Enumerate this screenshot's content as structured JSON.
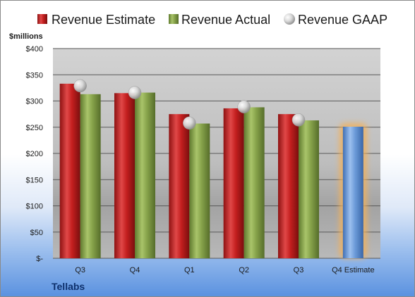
{
  "chart_data": {
    "type": "bar",
    "ylabel": "$millions",
    "company": "Tellabs",
    "ylim": [
      0,
      400
    ],
    "y_ticks": [
      {
        "value": 0,
        "label": "$-"
      },
      {
        "value": 50,
        "label": "$50"
      },
      {
        "value": 100,
        "label": "$100"
      },
      {
        "value": 150,
        "label": "$150"
      },
      {
        "value": 200,
        "label": "$200"
      },
      {
        "value": 250,
        "label": "$250"
      },
      {
        "value": 300,
        "label": "$300"
      },
      {
        "value": 350,
        "label": "$350"
      },
      {
        "value": 400,
        "label": "$400"
      }
    ],
    "categories": [
      "Q3",
      "Q4",
      "Q1",
      "Q2",
      "Q3",
      "Q4 Estimate"
    ],
    "series": [
      {
        "name": "Revenue Estimate",
        "kind": "bar",
        "color": "#cc2a2a",
        "values": [
          333,
          315,
          275,
          286,
          275,
          null
        ]
      },
      {
        "name": "Revenue Actual",
        "kind": "bar",
        "color": "#8aa84f",
        "values": [
          313,
          316,
          257,
          288,
          263,
          null
        ]
      },
      {
        "name": "Revenue GAAP",
        "kind": "marker",
        "color": "#c8c8c8",
        "values": [
          329,
          316,
          258,
          289,
          264,
          null
        ]
      }
    ],
    "highlight": {
      "category_index": 5,
      "value": 251,
      "color": "#6a9ad8",
      "glow": "#f2b05a"
    },
    "grid": true,
    "legend_position": "top"
  }
}
